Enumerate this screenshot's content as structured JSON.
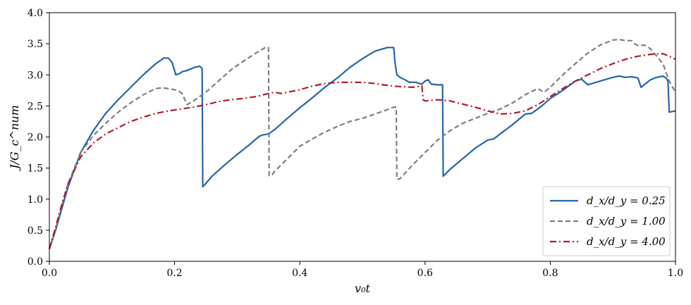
{
  "chart_data": {
    "type": "line",
    "xlabel": "v₀t",
    "ylabel": "J/G_c^num",
    "xlim": [
      0.0,
      1.0
    ],
    "ylim": [
      0.0,
      4.0
    ],
    "xticks": [
      "0.0",
      "0.2",
      "0.4",
      "0.6",
      "0.8",
      "1.0"
    ],
    "yticks": [
      "0.0",
      "0.5",
      "1.0",
      "1.5",
      "2.0",
      "2.5",
      "3.0",
      "3.5",
      "4.0"
    ],
    "xtick_values": [
      0.0,
      0.2,
      0.4,
      0.6,
      0.8,
      1.0
    ],
    "ytick_values": [
      0.0,
      0.5,
      1.0,
      1.5,
      2.0,
      2.5,
      3.0,
      3.5,
      4.0
    ],
    "grid": false,
    "legend_position": "bottom-right",
    "series": [
      {
        "name": "d_x/d_y = 0.25",
        "color": "#2465a8",
        "dash": "solid",
        "x": [
          0.0,
          0.01,
          0.02,
          0.03,
          0.05,
          0.07,
          0.09,
          0.11,
          0.13,
          0.15,
          0.17,
          0.183,
          0.19,
          0.196,
          0.202,
          0.208,
          0.212,
          0.22,
          0.232,
          0.24,
          0.244,
          0.245,
          0.247,
          0.26,
          0.28,
          0.3,
          0.32,
          0.335,
          0.34,
          0.35,
          0.36,
          0.38,
          0.4,
          0.42,
          0.44,
          0.46,
          0.48,
          0.5,
          0.52,
          0.54,
          0.55,
          0.552,
          0.555,
          0.56,
          0.568,
          0.575,
          0.585,
          0.595,
          0.6,
          0.605,
          0.61,
          0.62,
          0.628,
          0.629,
          0.63,
          0.64,
          0.66,
          0.68,
          0.7,
          0.71,
          0.72,
          0.74,
          0.76,
          0.77,
          0.78,
          0.79,
          0.8,
          0.82,
          0.84,
          0.85,
          0.86,
          0.88,
          0.9,
          0.91,
          0.92,
          0.93,
          0.94,
          0.945,
          0.95,
          0.96,
          0.97,
          0.98,
          0.985,
          0.988,
          0.99,
          1.0
        ],
        "y": [
          0.2,
          0.5,
          0.85,
          1.2,
          1.75,
          2.1,
          2.38,
          2.6,
          2.8,
          3.0,
          3.18,
          3.27,
          3.27,
          3.2,
          3.0,
          3.02,
          3.05,
          3.07,
          3.12,
          3.14,
          3.1,
          1.2,
          1.22,
          1.37,
          1.55,
          1.72,
          1.88,
          2.01,
          2.03,
          2.05,
          2.12,
          2.3,
          2.47,
          2.63,
          2.8,
          2.95,
          3.12,
          3.26,
          3.38,
          3.44,
          3.44,
          3.2,
          3.0,
          2.96,
          2.92,
          2.88,
          2.88,
          2.85,
          2.9,
          2.92,
          2.85,
          2.84,
          2.84,
          1.37,
          1.38,
          1.48,
          1.65,
          1.82,
          1.95,
          1.97,
          2.05,
          2.2,
          2.37,
          2.38,
          2.45,
          2.53,
          2.62,
          2.75,
          2.9,
          2.93,
          2.84,
          2.9,
          2.96,
          2.98,
          2.96,
          2.97,
          2.95,
          2.8,
          2.84,
          2.92,
          2.96,
          2.98,
          2.95,
          2.9,
          2.4,
          2.42
        ]
      },
      {
        "name": "d_x/d_y = 1.00",
        "color": "#7f7f7f",
        "dash": "dashed",
        "x": [
          0.0,
          0.01,
          0.02,
          0.03,
          0.05,
          0.07,
          0.09,
          0.11,
          0.13,
          0.15,
          0.17,
          0.18,
          0.19,
          0.205,
          0.212,
          0.22,
          0.23,
          0.25,
          0.27,
          0.29,
          0.31,
          0.33,
          0.345,
          0.35,
          0.351,
          0.355,
          0.36,
          0.38,
          0.4,
          0.42,
          0.44,
          0.46,
          0.48,
          0.5,
          0.52,
          0.54,
          0.55,
          0.554,
          0.555,
          0.56,
          0.58,
          0.6,
          0.62,
          0.64,
          0.66,
          0.68,
          0.7,
          0.72,
          0.74,
          0.76,
          0.78,
          0.79,
          0.8,
          0.82,
          0.84,
          0.86,
          0.88,
          0.9,
          0.91,
          0.92,
          0.93,
          0.935,
          0.94,
          0.95,
          0.96,
          0.97,
          0.98,
          0.99,
          1.0
        ],
        "y": [
          0.2,
          0.52,
          0.9,
          1.25,
          1.75,
          2.02,
          2.22,
          2.4,
          2.55,
          2.68,
          2.78,
          2.79,
          2.78,
          2.75,
          2.7,
          2.52,
          2.58,
          2.72,
          2.9,
          3.08,
          3.22,
          3.35,
          3.44,
          3.44,
          1.38,
          1.38,
          1.45,
          1.65,
          1.85,
          1.97,
          2.08,
          2.17,
          2.25,
          2.3,
          2.37,
          2.44,
          2.48,
          2.48,
          1.32,
          1.33,
          1.55,
          1.75,
          1.95,
          2.1,
          2.22,
          2.3,
          2.38,
          2.45,
          2.55,
          2.68,
          2.78,
          2.72,
          2.8,
          3.0,
          3.18,
          3.35,
          3.48,
          3.56,
          3.57,
          3.55,
          3.55,
          3.5,
          3.47,
          3.48,
          3.42,
          3.3,
          3.18,
          2.9,
          2.72
        ]
      },
      {
        "name": "d_x/d_y = 4.00",
        "color": "#b11a2b",
        "dash": "dashdot",
        "x": [
          0.0,
          0.01,
          0.02,
          0.03,
          0.05,
          0.07,
          0.09,
          0.11,
          0.13,
          0.15,
          0.17,
          0.19,
          0.21,
          0.23,
          0.25,
          0.27,
          0.29,
          0.31,
          0.33,
          0.35,
          0.36,
          0.37,
          0.38,
          0.4,
          0.42,
          0.44,
          0.46,
          0.48,
          0.5,
          0.52,
          0.54,
          0.56,
          0.58,
          0.595,
          0.597,
          0.6,
          0.62,
          0.64,
          0.66,
          0.68,
          0.7,
          0.72,
          0.74,
          0.76,
          0.78,
          0.8,
          0.82,
          0.84,
          0.86,
          0.88,
          0.9,
          0.92,
          0.94,
          0.96,
          0.98,
          0.99,
          1.0
        ],
        "y": [
          0.2,
          0.55,
          0.92,
          1.25,
          1.68,
          1.9,
          2.05,
          2.15,
          2.25,
          2.32,
          2.38,
          2.42,
          2.45,
          2.48,
          2.52,
          2.57,
          2.6,
          2.62,
          2.65,
          2.7,
          2.72,
          2.7,
          2.72,
          2.76,
          2.82,
          2.86,
          2.88,
          2.88,
          2.88,
          2.86,
          2.83,
          2.81,
          2.8,
          2.82,
          2.6,
          2.58,
          2.6,
          2.58,
          2.53,
          2.48,
          2.42,
          2.37,
          2.38,
          2.42,
          2.52,
          2.65,
          2.78,
          2.9,
          3.0,
          3.1,
          3.18,
          3.25,
          3.3,
          3.33,
          3.34,
          3.3,
          3.25
        ]
      }
    ]
  }
}
